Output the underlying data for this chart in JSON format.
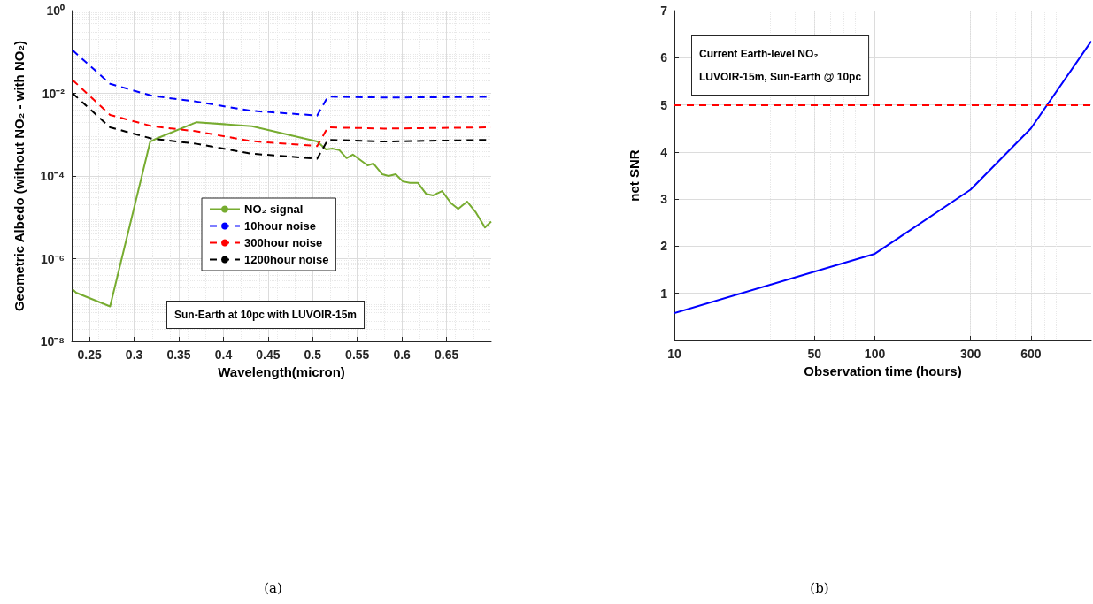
{
  "chart_data": [
    {
      "type": "line",
      "xlabel": "Wavelength(micron)",
      "ylabel": "Geometric Albedo (without NO₂ - with NO₂)",
      "log": "y",
      "grid": true,
      "legend": "center",
      "marker": "none",
      "xlim": [
        0.23,
        0.7
      ],
      "xticks": [
        0.25,
        0.3,
        0.35,
        0.4,
        0.45,
        0.5,
        0.55,
        0.6,
        0.65
      ],
      "ylim": [
        1e-08,
        1
      ],
      "yticks": [
        {
          "value": 1e-08,
          "label": "10⁻⁸"
        },
        {
          "value": 1e-06,
          "label": "10⁻⁶"
        },
        {
          "value": 0.0001,
          "label": "10⁻⁴"
        },
        {
          "value": 0.01,
          "label": "10⁻²"
        },
        {
          "value": 1,
          "label": "10⁰"
        }
      ],
      "annotations": [
        "Sun-Earth at 10pc with LUVOIR-15m",
        "(a)"
      ],
      "series": [
        {
          "name": "NO₂ signal",
          "color": "#77ac30",
          "line_style": "solid",
          "x": [
            0.231,
            0.235,
            0.273,
            0.318,
            0.325,
            0.37,
            0.432,
            0.505,
            0.515,
            0.522,
            0.53,
            0.538,
            0.545,
            0.5615,
            0.568,
            0.578,
            0.585,
            0.593,
            0.601,
            0.609,
            0.618,
            0.627,
            0.635,
            0.645,
            0.655,
            0.663,
            0.673,
            0.683,
            0.693,
            0.7
          ],
          "values": [
            1.8e-07,
            1.5e-07,
            7e-08,
            0.00068,
            0.0008,
            0.002,
            0.0016,
            0.00068,
            0.00044,
            0.00046,
            0.00042,
            0.00027,
            0.00033,
            0.00018,
            0.0002,
            0.00011,
            0.0001,
            0.00011,
            7.4e-05,
            6.8e-05,
            6.8e-05,
            3.7e-05,
            3.4e-05,
            4.3e-05,
            2.2e-05,
            1.6e-05,
            2.4e-05,
            1.3e-05,
            5.7e-06,
            7.9e-06
          ]
        },
        {
          "name": "10hour noise",
          "color": "#0000ff",
          "line_style": "dashed",
          "x": [
            0.231,
            0.273,
            0.32,
            0.37,
            0.43,
            0.505,
            0.517,
            0.58,
            0.7
          ],
          "values": [
            0.11,
            0.017,
            0.0087,
            0.0063,
            0.0038,
            0.0029,
            0.0083,
            0.0079,
            0.0082
          ]
        },
        {
          "name": "300hour noise",
          "color": "#ff0000",
          "line_style": "dashed",
          "x": [
            0.231,
            0.273,
            0.32,
            0.37,
            0.43,
            0.505,
            0.517,
            0.58,
            0.7
          ],
          "values": [
            0.021,
            0.003,
            0.0016,
            0.0012,
            0.0007,
            0.00053,
            0.0015,
            0.0014,
            0.0015
          ]
        },
        {
          "name": "1200hour noise",
          "color": "#000000",
          "line_style": "dashed",
          "x": [
            0.231,
            0.273,
            0.32,
            0.37,
            0.43,
            0.505,
            0.517,
            0.58,
            0.7
          ],
          "values": [
            0.01,
            0.0015,
            0.0008,
            0.0006,
            0.00035,
            0.00026,
            0.00075,
            0.00068,
            0.00075
          ]
        }
      ]
    },
    {
      "type": "line",
      "xlabel": "Observation time (hours)",
      "ylabel": "net SNR",
      "log": "x",
      "grid": true,
      "marker": "none",
      "xlim": [
        10,
        1200
      ],
      "xticks": [
        10,
        50,
        100,
        300,
        600
      ],
      "ylim": [
        0,
        7
      ],
      "yticks": [
        1,
        2,
        3,
        4,
        5,
        6,
        7
      ],
      "annotations": [
        "Current Earth-level NO₂",
        "LUVOIR-15m, Sun-Earth @ 10pc",
        "(b)"
      ],
      "ref_lines": [
        {
          "axis": "y",
          "value": 5,
          "color": "#ff0000",
          "line_style": "dashed"
        }
      ],
      "series": [
        {
          "color": "#0000ff",
          "line_style": "solid",
          "x": [
            10,
            100,
            300,
            600,
            1200
          ],
          "values": [
            0.58,
            1.84,
            3.2,
            4.5,
            6.35
          ]
        }
      ]
    }
  ]
}
